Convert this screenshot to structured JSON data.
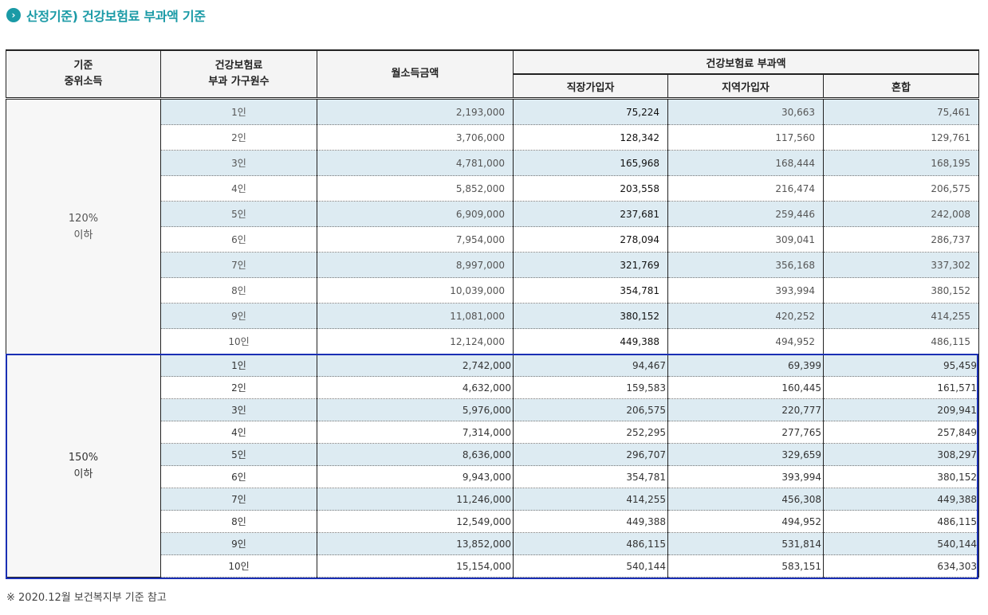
{
  "title": "산정기준) 건강보험료 부과액 기준",
  "headers": {
    "median_income": "기준\n중위소득",
    "households": "건강보험료\n부과 가구원수",
    "monthly_income": "월소득금액",
    "premium": "건강보험료 부과액",
    "employee": "직장가입자",
    "regional": "지역가입자",
    "mixed": "혼합"
  },
  "group1": {
    "label": "120%\n이하",
    "rows": [
      {
        "n": "1인",
        "income": "2,193,000",
        "emp": "75,224",
        "reg": "30,663",
        "mix": "75,461"
      },
      {
        "n": "2인",
        "income": "3,706,000",
        "emp": "128,342",
        "reg": "117,560",
        "mix": "129,761"
      },
      {
        "n": "3인",
        "income": "4,781,000",
        "emp": "165,968",
        "reg": "168,444",
        "mix": "168,195"
      },
      {
        "n": "4인",
        "income": "5,852,000",
        "emp": "203,558",
        "reg": "216,474",
        "mix": "206,575"
      },
      {
        "n": "5인",
        "income": "6,909,000",
        "emp": "237,681",
        "reg": "259,446",
        "mix": "242,008"
      },
      {
        "n": "6인",
        "income": "7,954,000",
        "emp": "278,094",
        "reg": "309,041",
        "mix": "286,737"
      },
      {
        "n": "7인",
        "income": "8,997,000",
        "emp": "321,769",
        "reg": "356,168",
        "mix": "337,302"
      },
      {
        "n": "8인",
        "income": "10,039,000",
        "emp": "354,781",
        "reg": "393,994",
        "mix": "380,152"
      },
      {
        "n": "9인",
        "income": "11,081,000",
        "emp": "380,152",
        "reg": "420,252",
        "mix": "414,255"
      },
      {
        "n": "10인",
        "income": "12,124,000",
        "emp": "449,388",
        "reg": "494,952",
        "mix": "486,115"
      }
    ]
  },
  "group2": {
    "label": "150%\n이하",
    "rows": [
      {
        "n": "1인",
        "income": "2,742,000",
        "emp": "94,467",
        "reg": "69,399",
        "mix": "95,459"
      },
      {
        "n": "2인",
        "income": "4,632,000",
        "emp": "159,583",
        "reg": "160,445",
        "mix": "161,571"
      },
      {
        "n": "3인",
        "income": "5,976,000",
        "emp": "206,575",
        "reg": "220,777",
        "mix": "209,941"
      },
      {
        "n": "4인",
        "income": "7,314,000",
        "emp": "252,295",
        "reg": "277,765",
        "mix": "257,849"
      },
      {
        "n": "5인",
        "income": "8,636,000",
        "emp": "296,707",
        "reg": "329,659",
        "mix": "308,297"
      },
      {
        "n": "6인",
        "income": "9,943,000",
        "emp": "354,781",
        "reg": "393,994",
        "mix": "380,152"
      },
      {
        "n": "7인",
        "income": "11,246,000",
        "emp": "414,255",
        "reg": "456,308",
        "mix": "449,388"
      },
      {
        "n": "8인",
        "income": "12,549,000",
        "emp": "449,388",
        "reg": "494,952",
        "mix": "486,115"
      },
      {
        "n": "9인",
        "income": "13,852,000",
        "emp": "486,115",
        "reg": "531,814",
        "mix": "540,144"
      },
      {
        "n": "10인",
        "income": "15,154,000",
        "emp": "540,144",
        "reg": "583,151",
        "mix": "634,303"
      }
    ]
  },
  "note": "※ 2020.12월 보건복지부 기준 참고",
  "colors": {
    "accent": "#1a9aa6",
    "row_shade": "#ddebf2",
    "highlight_frame": "#1a2fb4"
  }
}
